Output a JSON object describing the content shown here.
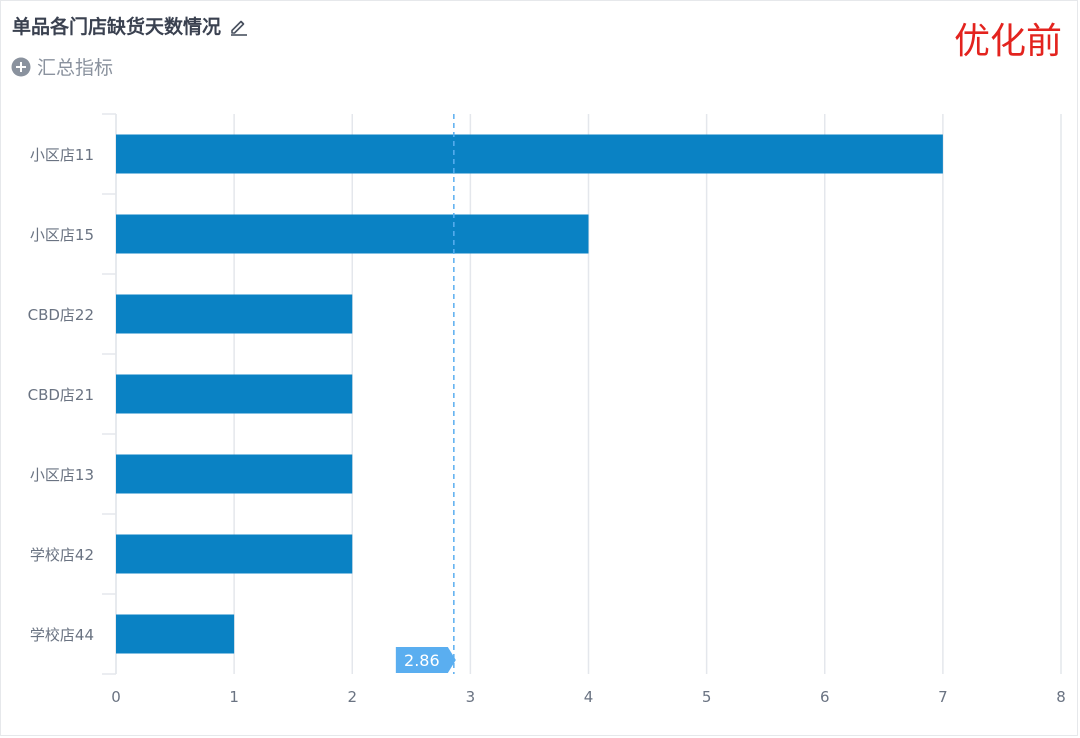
{
  "header": {
    "title": "单品各门店缺货天数情况",
    "summary_label": "汇总指标",
    "tag": "优化前"
  },
  "colors": {
    "bar": "#0a82c4",
    "grid": "#e4e7ec",
    "reference": "#5aaef0",
    "reference_badge": "#5aaef0",
    "tick_text": "#6a7382",
    "tag": "#e3231e"
  },
  "icons": {
    "edit": "pencil-icon",
    "summary": "plus-circle-icon"
  },
  "chart_data": {
    "type": "bar",
    "orientation": "horizontal",
    "categories": [
      "小区店11",
      "小区店15",
      "CBD店22",
      "CBD店21",
      "小区店13",
      "学校店42",
      "学校店44"
    ],
    "values": [
      7,
      4,
      2,
      2,
      2,
      2,
      1
    ],
    "xlim": [
      0,
      8
    ],
    "xticks": [
      0,
      1,
      2,
      3,
      4,
      5,
      6,
      7,
      8
    ],
    "reference_line": {
      "value": 2.86,
      "label": "2.86"
    },
    "grid": true,
    "legend": "none"
  }
}
